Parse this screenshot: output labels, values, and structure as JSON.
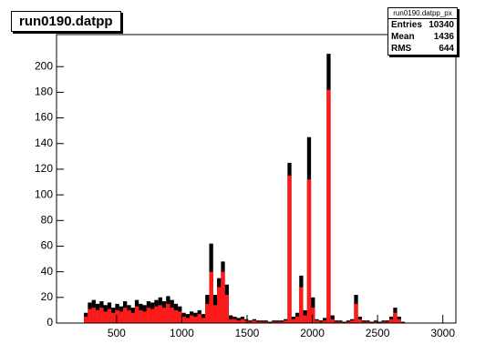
{
  "chart_data": {
    "type": "histogram",
    "title": "run0190.datpp",
    "bins": [
      40,
      70,
      100,
      130,
      160,
      190,
      220,
      250,
      280,
      310,
      340,
      370,
      400,
      430,
      460,
      490,
      520,
      550,
      580,
      610,
      640,
      670,
      700,
      730,
      760,
      790,
      820,
      850,
      880,
      910,
      940,
      970,
      1000,
      1030,
      1060,
      1090,
      1120,
      1150,
      1180,
      1210,
      1240,
      1270,
      1300,
      1330,
      1360,
      1390,
      1420,
      1450,
      1480,
      1510,
      1540,
      1570,
      1600,
      1630,
      1660,
      1690,
      1720,
      1750,
      1780,
      1810,
      1840,
      1870,
      1900,
      1930,
      1960,
      1990,
      2020,
      2050,
      2080,
      2110,
      2140,
      2170,
      2200,
      2230,
      2260,
      2290,
      2320,
      2350,
      2380,
      2410,
      2440,
      2470,
      2500,
      2530,
      2560,
      2590,
      2620,
      2650,
      2680,
      2710,
      2740,
      2770,
      2800,
      2830,
      2860,
      2890,
      2920,
      2950,
      2980,
      3010,
      3040,
      3070,
      3100
    ],
    "series": [
      {
        "color": "#000000",
        "values": [
          0,
          0,
          0,
          0,
          0,
          0,
          0,
          8,
          16,
          18,
          15,
          17,
          14,
          16,
          12,
          15,
          13,
          17,
          14,
          12,
          18,
          15,
          14,
          17,
          16,
          18,
          20,
          17,
          21,
          18,
          15,
          13,
          8,
          7,
          9,
          8,
          10,
          7,
          22,
          62,
          22,
          35,
          48,
          30,
          6,
          5,
          4,
          5,
          3,
          2,
          3,
          2,
          2,
          2,
          1,
          2,
          2,
          2,
          3,
          125,
          5,
          8,
          37,
          10,
          145,
          20,
          3,
          2,
          4,
          210,
          6,
          2,
          2,
          1,
          2,
          3,
          22,
          5,
          2,
          2,
          1,
          2,
          1,
          2,
          2,
          5,
          12,
          5,
          1,
          0,
          0,
          0,
          0,
          0,
          0,
          0,
          0,
          0,
          0,
          0,
          0,
          0
        ]
      },
      {
        "color": "#ff1a1a",
        "values": [
          0,
          0,
          0,
          0,
          0,
          0,
          0,
          5,
          11,
          12,
          10,
          12,
          9,
          11,
          8,
          10,
          9,
          12,
          10,
          8,
          13,
          10,
          9,
          12,
          11,
          13,
          14,
          12,
          15,
          12,
          10,
          9,
          5,
          4,
          6,
          5,
          7,
          4,
          15,
          40,
          14,
          28,
          40,
          22,
          3,
          3,
          2,
          3,
          2,
          1,
          2,
          1,
          1,
          1,
          0,
          1,
          1,
          1,
          2,
          115,
          3,
          5,
          28,
          6,
          112,
          12,
          2,
          1,
          2,
          182,
          3,
          1,
          1,
          0,
          1,
          2,
          15,
          3,
          1,
          1,
          0,
          1,
          0,
          1,
          1,
          3,
          8,
          3,
          0,
          0,
          0,
          0,
          0,
          0,
          0,
          0,
          0,
          0,
          0,
          0,
          0,
          0
        ]
      }
    ],
    "xlim": [
      40,
      3100
    ],
    "xticks": [
      500,
      1000,
      1500,
      2000,
      2500,
      3000
    ],
    "ylim": [
      0,
      225
    ],
    "yticks": [
      0,
      20,
      40,
      60,
      80,
      100,
      120,
      140,
      160,
      180,
      200
    ],
    "stats": {
      "title": "run0190.datpp_px",
      "rows": [
        [
          "Entries",
          10340
        ],
        [
          "Mean",
          1436
        ],
        [
          "RMS",
          644
        ]
      ]
    }
  }
}
